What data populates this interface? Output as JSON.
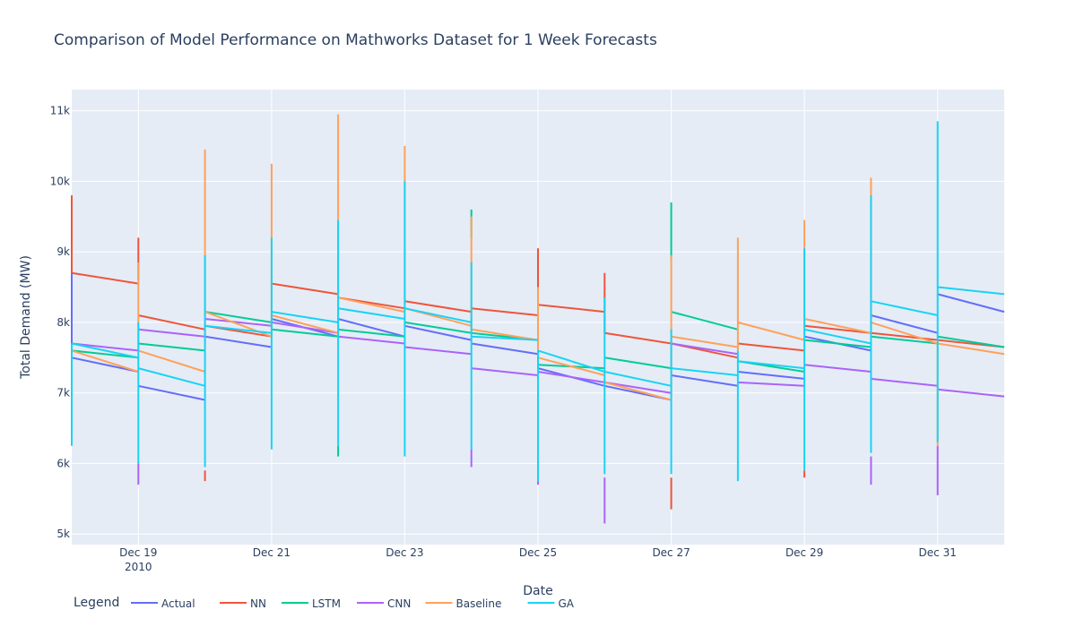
{
  "chart_data": {
    "type": "line",
    "title": "Comparison of Model Performance on Mathworks Dataset for 1 Week Forecasts",
    "xlabel": "Date",
    "ylabel": "Total Demand (MW)",
    "x_range": [
      18.0,
      32.0
    ],
    "ylim": [
      4850,
      11300
    ],
    "x_ticks": [
      {
        "x": 19,
        "label": "Dec 19",
        "sub": "2010"
      },
      {
        "x": 21,
        "label": "Dec 21"
      },
      {
        "x": 23,
        "label": "Dec 23"
      },
      {
        "x": 25,
        "label": "Dec 25"
      },
      {
        "x": 27,
        "label": "Dec 27"
      },
      {
        "x": 29,
        "label": "Dec 29"
      },
      {
        "x": 31,
        "label": "Dec 31"
      }
    ],
    "y_ticks": [
      {
        "v": 5000,
        "label": "5k"
      },
      {
        "v": 6000,
        "label": "6k"
      },
      {
        "v": 7000,
        "label": "7k"
      },
      {
        "v": 8000,
        "label": "8k"
      },
      {
        "v": 9000,
        "label": "9k"
      },
      {
        "v": 10000,
        "label": "10k"
      },
      {
        "v": 11000,
        "label": "11k"
      }
    ],
    "grid": true,
    "legend": {
      "title": "Legend",
      "position": "bottom-left",
      "orientation": "horizontal"
    },
    "segment_x": [
      18,
      19,
      20,
      21,
      22,
      23,
      24,
      25,
      26,
      27,
      28,
      29,
      30,
      31,
      32
    ],
    "series": [
      {
        "name": "Actual",
        "color": "#636efa",
        "segments": [
          [
            7500,
            7300
          ],
          [
            7100,
            6900
          ],
          [
            7800,
            7650
          ],
          [
            8050,
            7800
          ],
          [
            8050,
            7800
          ],
          [
            7950,
            7750
          ],
          [
            7700,
            7550
          ],
          [
            7350,
            7100
          ],
          [
            7100,
            6900
          ],
          [
            7250,
            7100
          ],
          [
            7300,
            7200
          ],
          [
            7800,
            7600
          ],
          [
            8100,
            7850
          ],
          [
            8400,
            8150
          ]
        ],
        "spikes": [
          [
            18,
            7500,
            9300
          ],
          [
            25,
            7350,
            8500
          ]
        ]
      },
      {
        "name": "NN",
        "color": "#ef553b",
        "segments": [
          [
            8700,
            8550
          ],
          [
            8100,
            7900
          ],
          [
            7950,
            7800
          ],
          [
            8550,
            8400
          ],
          [
            8350,
            8200
          ],
          [
            8300,
            8150
          ],
          [
            8200,
            8100
          ],
          [
            8250,
            8150
          ],
          [
            7850,
            7700
          ],
          [
            7700,
            7500
          ],
          [
            7700,
            7600
          ],
          [
            7950,
            7850
          ],
          [
            7850,
            7750
          ],
          [
            7750,
            7650
          ]
        ],
        "spikes": [
          [
            18,
            8700,
            9800
          ],
          [
            19,
            8600,
            9200
          ],
          [
            20,
            5750,
            5900
          ],
          [
            25,
            8250,
            9050
          ],
          [
            26,
            7850,
            8700
          ],
          [
            27,
            5350,
            5800
          ],
          [
            29,
            5800,
            5900
          ]
        ]
      },
      {
        "name": "LSTM",
        "color": "#00cc96",
        "segments": [
          [
            7600,
            7500
          ],
          [
            7700,
            7600
          ],
          [
            8150,
            8000
          ],
          [
            7900,
            7800
          ],
          [
            7900,
            7800
          ],
          [
            8000,
            7850
          ],
          [
            7850,
            7750
          ],
          [
            7400,
            7350
          ],
          [
            7500,
            7350
          ],
          [
            8150,
            7900
          ],
          [
            7450,
            7300
          ],
          [
            7750,
            7650
          ],
          [
            7800,
            7700
          ],
          [
            7800,
            7650
          ]
        ],
        "spikes": [
          [
            22,
            6100,
            6250
          ],
          [
            24,
            9200,
            9600
          ],
          [
            27,
            8900,
            9700
          ]
        ]
      },
      {
        "name": "CNN",
        "color": "#ab63fa",
        "segments": [
          [
            7700,
            7600
          ],
          [
            7900,
            7800
          ],
          [
            8050,
            7950
          ],
          [
            8000,
            7850
          ],
          [
            7800,
            7700
          ],
          [
            7650,
            7550
          ],
          [
            7350,
            7250
          ],
          [
            7300,
            7150
          ],
          [
            7150,
            7000
          ],
          [
            7700,
            7550
          ],
          [
            7150,
            7100
          ],
          [
            7400,
            7300
          ],
          [
            7200,
            7100
          ],
          [
            7050,
            6950
          ]
        ],
        "spikes": [
          [
            19,
            5700,
            6000
          ],
          [
            24,
            5950,
            6200
          ],
          [
            25,
            5700,
            5750
          ],
          [
            26,
            5150,
            5800
          ],
          [
            30,
            5700,
            6100
          ],
          [
            31,
            5550,
            6250
          ]
        ]
      },
      {
        "name": "Baseline",
        "color": "#ffa15a",
        "segments": [
          [
            7600,
            7300
          ],
          [
            7600,
            7300
          ],
          [
            8150,
            7800
          ],
          [
            8100,
            7850
          ],
          [
            8350,
            8150
          ],
          [
            8200,
            7950
          ],
          [
            7900,
            7750
          ],
          [
            7500,
            7250
          ],
          [
            7150,
            6900
          ],
          [
            7800,
            7650
          ],
          [
            8000,
            7750
          ],
          [
            8050,
            7850
          ],
          [
            8000,
            7700
          ],
          [
            7700,
            7550
          ]
        ],
        "spikes": [
          [
            19,
            7600,
            8850
          ],
          [
            20,
            7700,
            10450
          ],
          [
            21,
            7800,
            10250
          ],
          [
            22,
            7800,
            10950
          ],
          [
            23,
            8250,
            10500
          ],
          [
            24,
            7850,
            9500
          ],
          [
            25,
            7400,
            8500
          ],
          [
            27,
            6950,
            8950
          ],
          [
            28,
            7600,
            9200
          ],
          [
            29,
            7800,
            9450
          ],
          [
            30,
            7900,
            10050
          ],
          [
            31,
            6250,
            7700
          ]
        ]
      },
      {
        "name": "GA",
        "color": "#19d3f3",
        "segments": [
          [
            7700,
            7500
          ],
          [
            7350,
            7100
          ],
          [
            7950,
            7850
          ],
          [
            8150,
            8000
          ],
          [
            8200,
            8050
          ],
          [
            8200,
            8000
          ],
          [
            7800,
            7750
          ],
          [
            7600,
            7300
          ],
          [
            7300,
            7100
          ],
          [
            7350,
            7250
          ],
          [
            7450,
            7350
          ],
          [
            7900,
            7700
          ],
          [
            8300,
            8100
          ],
          [
            8500,
            8400
          ]
        ],
        "spikes": [
          [
            18,
            6250,
            7700
          ],
          [
            19,
            6000,
            8000
          ],
          [
            20,
            5950,
            8950
          ],
          [
            21,
            6200,
            9200
          ],
          [
            22,
            6250,
            9450
          ],
          [
            23,
            6100,
            10000
          ],
          [
            24,
            6200,
            8850
          ],
          [
            25,
            5750,
            7600
          ],
          [
            26,
            5850,
            8350
          ],
          [
            27,
            5850,
            7900
          ],
          [
            28,
            5750,
            7600
          ],
          [
            29,
            5900,
            9050
          ],
          [
            30,
            6150,
            9800
          ],
          [
            31,
            6300,
            10850
          ]
        ]
      }
    ]
  }
}
